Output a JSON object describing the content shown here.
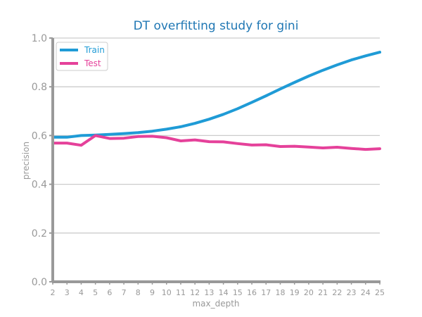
{
  "chart_data": {
    "type": "line",
    "title": "DT overfitting study for gini",
    "xlabel": "max_depth",
    "ylabel": "precision",
    "x": [
      2,
      3,
      4,
      5,
      6,
      7,
      8,
      9,
      10,
      11,
      12,
      13,
      14,
      15,
      16,
      17,
      18,
      19,
      20,
      21,
      22,
      23,
      24,
      25
    ],
    "xlim": [
      2,
      25
    ],
    "ylim": [
      0.0,
      1.0
    ],
    "yticks": [
      "0.0",
      "0.2",
      "0.4",
      "0.6",
      "0.8",
      "1.0"
    ],
    "grid": "y",
    "legend_position": "top-left",
    "series": [
      {
        "name": "Train",
        "color": "#1f9bd6",
        "values": [
          0.593,
          0.593,
          0.6,
          0.602,
          0.605,
          0.608,
          0.612,
          0.618,
          0.626,
          0.636,
          0.65,
          0.667,
          0.687,
          0.71,
          0.736,
          0.763,
          0.791,
          0.818,
          0.844,
          0.868,
          0.89,
          0.91,
          0.927,
          0.942
        ]
      },
      {
        "name": "Test",
        "color": "#e5419a",
        "values": [
          0.569,
          0.569,
          0.56,
          0.6,
          0.588,
          0.589,
          0.596,
          0.597,
          0.591,
          0.578,
          0.582,
          0.575,
          0.574,
          0.567,
          0.561,
          0.562,
          0.555,
          0.556,
          0.553,
          0.549,
          0.552,
          0.547,
          0.543,
          0.546
        ]
      }
    ],
    "title_color": "#1f77b4",
    "grid_color": "#cccccc",
    "axis_color": "#999999"
  }
}
